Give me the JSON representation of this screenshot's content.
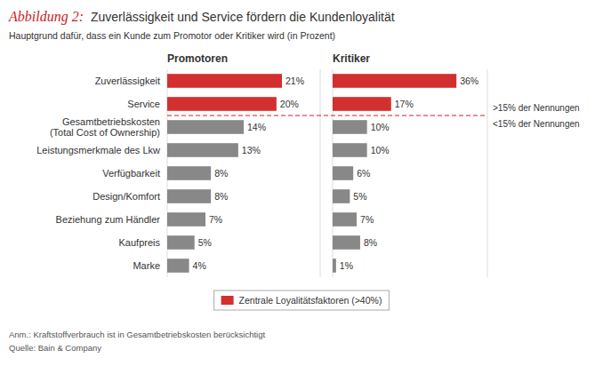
{
  "chart_data": {
    "type": "bar",
    "orientation": "horizontal",
    "title_label": {
      "text": "Abbildung 2:",
      "color": "#cc2222"
    },
    "title": "Zuverlässigkeit und Service fördern die Kundenloyalität",
    "subtitle": "Hauptgrund dafür, dass ein Kunde zum Promotor oder Kritiker wird (in Prozent)",
    "categories": [
      "Zuverlässigkeit",
      "Service",
      "Gesamtbetriebskosten\n(Total Cost of Ownership)",
      "Leistungsmerkmale des Lkw",
      "Verfügbarkeit",
      "Design/Komfort",
      "Beziehung zum Händler",
      "Kaufpreis",
      "Marke"
    ],
    "series": [
      {
        "name": "Promotoren",
        "values": [
          21,
          20,
          14,
          13,
          8,
          8,
          7,
          5,
          4
        ],
        "value_labels": [
          "21%",
          "20%",
          "14%",
          "13%",
          "8%",
          "8%",
          "7%",
          "5%",
          "4%"
        ],
        "colors": [
          "#d32f2f",
          "#d32f2f",
          "#888888",
          "#888888",
          "#888888",
          "#888888",
          "#888888",
          "#888888",
          "#888888"
        ],
        "xlim": [
          0,
          28
        ]
      },
      {
        "name": "Kritiker",
        "values": [
          36,
          17,
          10,
          10,
          6,
          5,
          7,
          8,
          1
        ],
        "value_labels": [
          "36%",
          "17%",
          "10%",
          "10%",
          "6%",
          "5%",
          "7%",
          "8%",
          "1%"
        ],
        "colors": [
          "#d32f2f",
          "#d32f2f",
          "#888888",
          "#888888",
          "#888888",
          "#888888",
          "#888888",
          "#888888",
          "#888888"
        ],
        "xlim": [
          0,
          45
        ]
      }
    ],
    "data_labels": true,
    "tick_labels": "y",
    "grid": false,
    "legend": "bottom",
    "legend_items": [
      {
        "name": "Zentrale Loyalitätsfaktoren (>40%)",
        "color": "#d32f2f"
      }
    ],
    "separator": {
      "color": "#cc2222",
      "annotations": [
        ">15% der Nennungen",
        "<15% der Nennungen"
      ]
    },
    "notes": [
      "Anm.: Kraftstoffverbrauch ist in Gesamtbetriebskosten berücksichtigt",
      "Quelle: Bain & Company"
    ]
  }
}
